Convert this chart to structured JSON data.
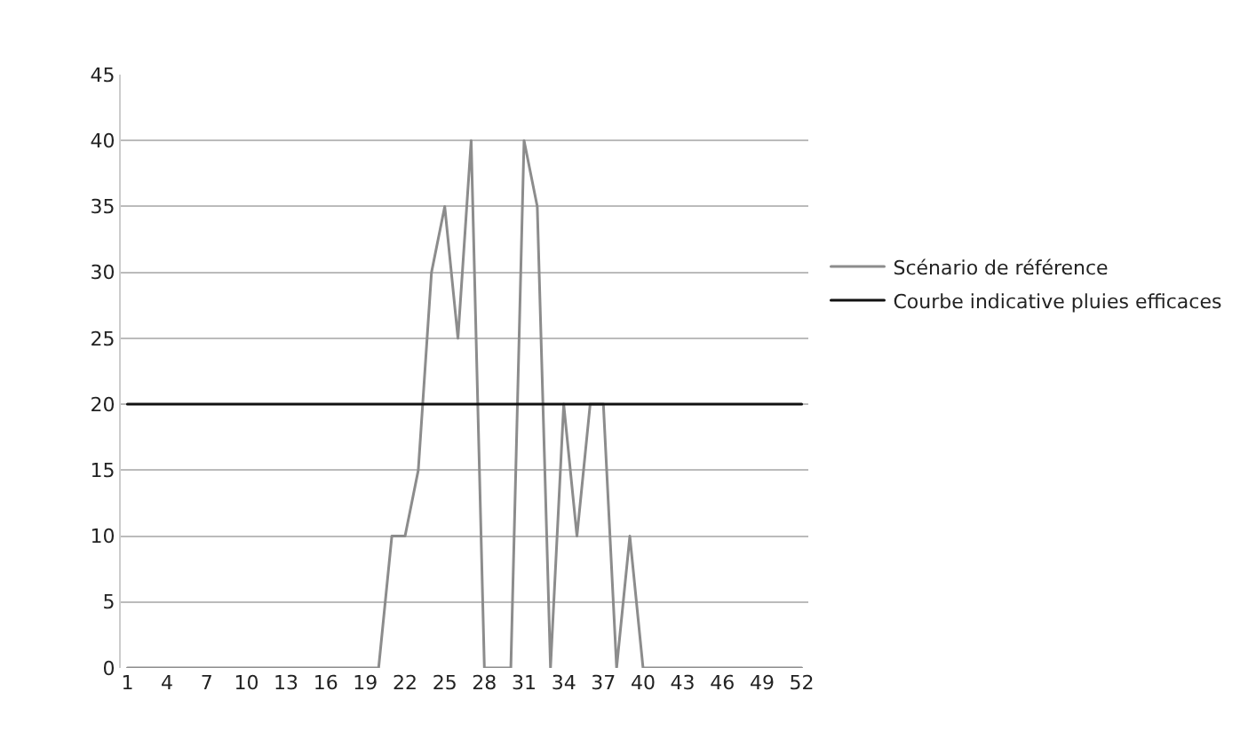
{
  "chart_data": {
    "type": "line",
    "categories": [
      "1",
      null,
      null,
      "4",
      null,
      null,
      "7",
      null,
      null,
      "10",
      null,
      null,
      "13",
      null,
      null,
      "16",
      null,
      null,
      "19",
      null,
      null,
      "22",
      null,
      null,
      "25",
      null,
      null,
      "28",
      null,
      null,
      "31",
      null,
      null,
      "34",
      null,
      null,
      "37",
      null,
      null,
      "40",
      null,
      null,
      "43",
      null,
      null,
      "46",
      null,
      null,
      "49",
      null,
      null,
      "52"
    ],
    "series": [
      {
        "name": "Scénario de référence",
        "color": "#8c8c8c",
        "values": [
          0,
          0,
          0,
          0,
          0,
          0,
          0,
          0,
          0,
          0,
          0,
          0,
          0,
          0,
          0,
          0,
          0,
          0,
          0,
          0,
          10,
          10,
          15,
          30,
          35,
          25,
          40,
          0,
          0,
          0,
          40,
          35,
          0,
          20,
          10,
          20,
          20,
          0,
          10,
          0,
          0,
          0,
          0,
          0,
          0,
          0,
          0,
          0,
          0,
          0,
          0,
          0
        ]
      },
      {
        "name": "Courbe indicative pluies efficaces",
        "color": "#111111",
        "values": [
          20,
          20,
          20,
          20,
          20,
          20,
          20,
          20,
          20,
          20,
          20,
          20,
          20,
          20,
          20,
          20,
          20,
          20,
          20,
          20,
          20,
          20,
          20,
          20,
          20,
          20,
          20,
          20,
          20,
          20,
          20,
          20,
          20,
          20,
          20,
          20,
          20,
          20,
          20,
          20,
          20,
          20,
          20,
          20,
          20,
          20,
          20,
          20,
          20,
          20,
          20,
          20
        ]
      }
    ],
    "ylim": [
      0,
      45
    ],
    "yticks": [
      0,
      5,
      10,
      15,
      20,
      25,
      30,
      35,
      40,
      45
    ],
    "grid": "y",
    "legend": "right",
    "marker": "none",
    "line_style": "solid"
  }
}
